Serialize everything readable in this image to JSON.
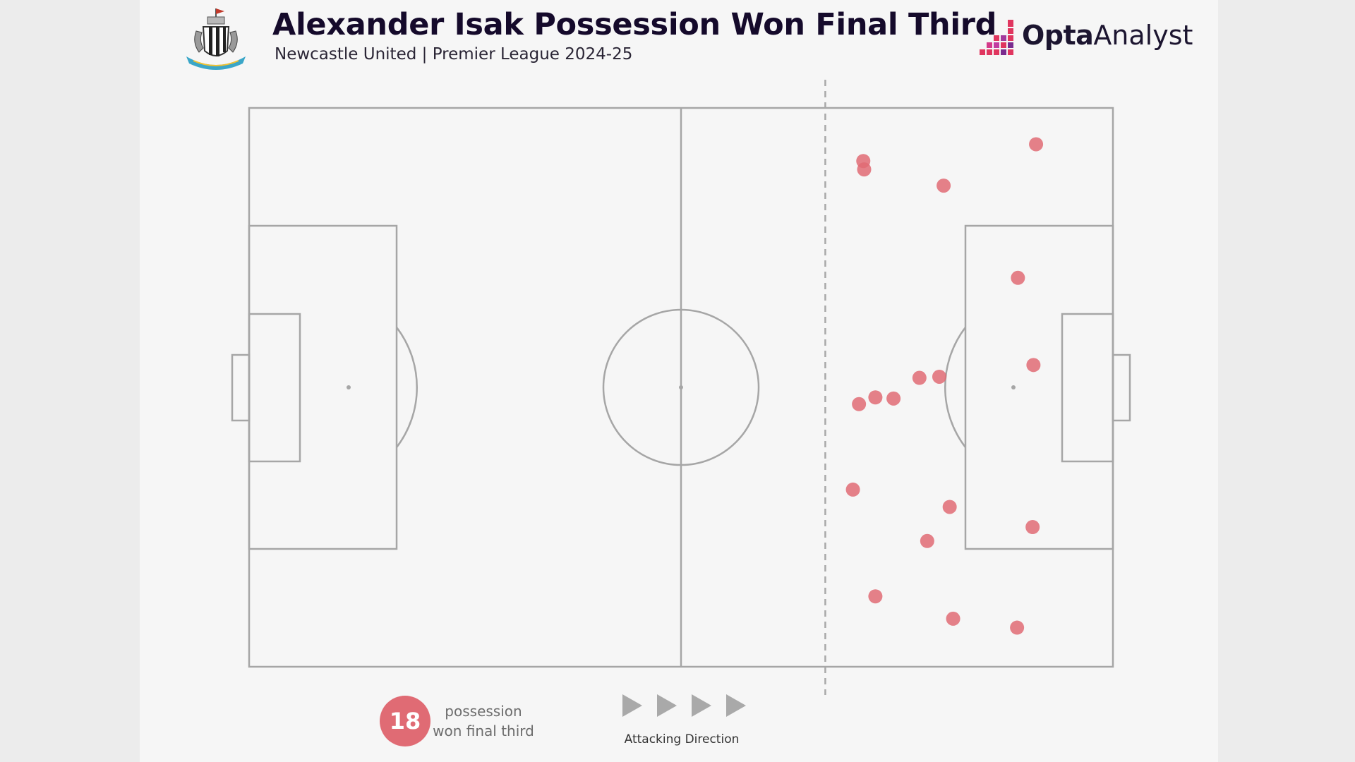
{
  "header": {
    "title": "Alexander Isak Possession Won Final Third",
    "subtitle": "Newcastle United | Premier League 2024-25",
    "crest_icon": "newcastle-united-crest-icon",
    "brand_bold": "Opta",
    "brand_light": "Analyst",
    "brand_icon": "opta-bars-icon"
  },
  "legend": {
    "count": "18",
    "label_line1": "possession",
    "label_line2": "won final third",
    "direction_label": "Attacking Direction",
    "direction_icon": "play-arrow-icon"
  },
  "colors": {
    "point": "#e06b74",
    "pitch_line": "#a6a6a6",
    "third_line": "#a8a8a8",
    "title": "#150a2b",
    "arrow": "#a9a9a9"
  },
  "chart_data": {
    "type": "scatter",
    "title": "Alexander Isak Possession Won Final Third",
    "subtitle": "Newcastle United | Premier League 2024-25",
    "xlim": [
      0,
      100
    ],
    "ylim": [
      0,
      100
    ],
    "final_third_line_x": 66.7,
    "attacking_direction": "right",
    "points": [
      {
        "x": 71.1,
        "y": 90.5
      },
      {
        "x": 71.2,
        "y": 89.0
      },
      {
        "x": 91.1,
        "y": 93.5
      },
      {
        "x": 80.4,
        "y": 86.1
      },
      {
        "x": 89.0,
        "y": 69.6
      },
      {
        "x": 90.8,
        "y": 54.0
      },
      {
        "x": 77.6,
        "y": 51.7
      },
      {
        "x": 79.9,
        "y": 51.9
      },
      {
        "x": 72.5,
        "y": 48.2
      },
      {
        "x": 74.6,
        "y": 48.0
      },
      {
        "x": 70.6,
        "y": 47.0
      },
      {
        "x": 69.9,
        "y": 31.7
      },
      {
        "x": 81.1,
        "y": 28.6
      },
      {
        "x": 90.7,
        "y": 25.0
      },
      {
        "x": 78.5,
        "y": 22.5
      },
      {
        "x": 72.5,
        "y": 12.6
      },
      {
        "x": 81.5,
        "y": 8.6
      },
      {
        "x": 88.9,
        "y": 7.0
      }
    ]
  }
}
